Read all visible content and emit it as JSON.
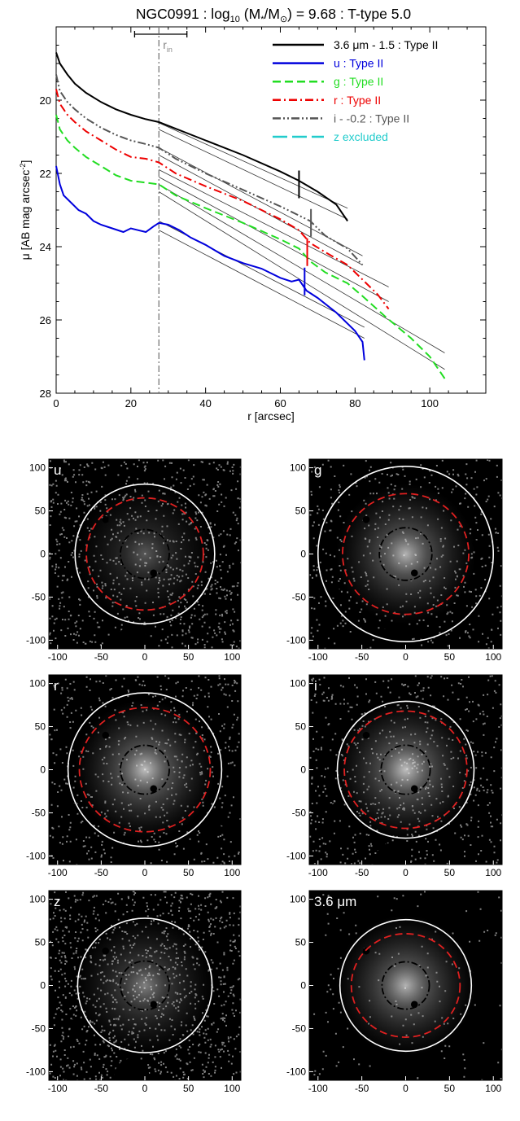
{
  "chart_data": {
    "type": "line",
    "title": "NGC0991 : log",
    "title_sub": "10",
    "title_mid": " (M",
    "title_star": "*",
    "title_rest": "/M",
    "title_sun_sub": "⊙",
    "title_end": ") = 9.68 : T-type 5.0",
    "xlabel": "r [arcsec]",
    "ylabel": "μ [AB mag arcsec",
    "ylabel_sup": "-2",
    "ylabel_end": "]",
    "xlim": [
      0,
      115
    ],
    "ylim": [
      28,
      18
    ],
    "xticks": [
      0,
      20,
      40,
      60,
      80,
      100
    ],
    "yticks": [
      20,
      22,
      24,
      26,
      28
    ],
    "r_in_label": "r",
    "r_in_sub": "in",
    "r_in": 27.5,
    "r_in_range": [
      21,
      35
    ],
    "legend": [
      {
        "label": "3.6 μm - 1.5 : Type II",
        "color": "#000000",
        "dash": "solid"
      },
      {
        "label": "u : Type II",
        "color": "#0000dd",
        "dash": "solid"
      },
      {
        "label": "g : Type II",
        "color": "#22dd22",
        "dash": "dash"
      },
      {
        "label": "r : Type II",
        "color": "#ee0000",
        "dash": "dashdot"
      },
      {
        "label": "i - -0.2 : Type II",
        "color": "#555555",
        "dash": "dashdotdot"
      },
      {
        "label": "z excluded",
        "color": "#22cccc",
        "dash": "longdash"
      }
    ],
    "series": [
      {
        "name": "3.6 μm - 1.5",
        "color": "#000000",
        "x": [
          0,
          1,
          3,
          5,
          8,
          12,
          16,
          20,
          24,
          27.5,
          32,
          40,
          50,
          60,
          65,
          70,
          75,
          78
        ],
        "y": [
          18.7,
          19.0,
          19.3,
          19.55,
          19.8,
          20.05,
          20.25,
          20.4,
          20.52,
          20.6,
          20.78,
          21.1,
          21.5,
          21.95,
          22.2,
          22.5,
          22.85,
          23.3
        ]
      },
      {
        "name": "u",
        "color": "#0000dd",
        "x": [
          0,
          1,
          2,
          4,
          6,
          8,
          10,
          12,
          15,
          18,
          20,
          22,
          24,
          26,
          27.5,
          30,
          33,
          36,
          40,
          45,
          50,
          55,
          60,
          63,
          65,
          67,
          70,
          75,
          80,
          82,
          82.5
        ],
        "y": [
          21.8,
          22.3,
          22.6,
          22.8,
          23.0,
          23.1,
          23.3,
          23.4,
          23.5,
          23.6,
          23.5,
          23.55,
          23.6,
          23.45,
          23.35,
          23.4,
          23.55,
          23.75,
          23.95,
          24.25,
          24.45,
          24.6,
          24.85,
          24.95,
          24.9,
          25.2,
          25.4,
          25.8,
          26.3,
          26.6,
          27.1
        ]
      },
      {
        "name": "g",
        "color": "#22dd22",
        "x": [
          0,
          1,
          3,
          5,
          8,
          12,
          16,
          20,
          24,
          27.5,
          32,
          40,
          50,
          60,
          65,
          68,
          72,
          78,
          82,
          88,
          95,
          100,
          104
        ],
        "y": [
          20.4,
          20.8,
          21.1,
          21.3,
          21.55,
          21.8,
          22.05,
          22.2,
          22.25,
          22.3,
          22.6,
          22.95,
          23.35,
          23.8,
          24.05,
          24.4,
          24.7,
          25.0,
          25.35,
          25.9,
          26.5,
          27.0,
          27.6
        ]
      },
      {
        "name": "r",
        "color": "#ee0000",
        "x": [
          0,
          1,
          3,
          5,
          8,
          12,
          16,
          20,
          24,
          27.5,
          32,
          40,
          50,
          60,
          65,
          68,
          72,
          78,
          82,
          86,
          89
        ],
        "y": [
          19.7,
          20.1,
          20.4,
          20.6,
          20.85,
          21.1,
          21.35,
          21.55,
          21.6,
          21.7,
          22.0,
          22.35,
          22.75,
          23.25,
          23.55,
          23.9,
          24.15,
          24.5,
          24.9,
          25.3,
          25.7
        ]
      },
      {
        "name": "i - -0.2",
        "color": "#555555",
        "x": [
          0,
          1,
          3,
          5,
          8,
          12,
          16,
          20,
          24,
          27.5,
          32,
          40,
          50,
          60,
          65,
          68,
          72,
          78,
          82
        ],
        "y": [
          19.3,
          19.75,
          20.05,
          20.25,
          20.5,
          20.75,
          20.95,
          21.1,
          21.2,
          21.3,
          21.6,
          22.0,
          22.45,
          22.9,
          23.15,
          23.3,
          23.7,
          24.05,
          24.5
        ]
      }
    ],
    "fits": [
      {
        "x": [
          27.5,
          78
        ],
        "y": [
          20.62,
          22.95
        ]
      },
      {
        "x": [
          27.5,
          78
        ],
        "y": [
          20.8,
          23.25
        ]
      },
      {
        "x": [
          27.5,
          82
        ],
        "y": [
          21.3,
          24.25
        ]
      },
      {
        "x": [
          27.5,
          82
        ],
        "y": [
          21.5,
          24.5
        ]
      },
      {
        "x": [
          27.5,
          89
        ],
        "y": [
          21.9,
          25.1
        ]
      },
      {
        "x": [
          27.5,
          89
        ],
        "y": [
          22.1,
          25.5
        ]
      },
      {
        "x": [
          27.5,
          104
        ],
        "y": [
          22.3,
          26.9
        ]
      },
      {
        "x": [
          27.5,
          104
        ],
        "y": [
          22.5,
          27.35
        ]
      },
      {
        "x": [
          27.5,
          82.5
        ],
        "y": [
          23.3,
          26.2
        ]
      },
      {
        "x": [
          27.5,
          82.5
        ],
        "y": [
          23.55,
          26.5
        ]
      }
    ],
    "breaks": [
      {
        "x": 65.0,
        "y": 22.3,
        "color": "#000000"
      },
      {
        "x": 66.5,
        "y": 24.95,
        "color": "#0000dd"
      },
      {
        "x": 67.2,
        "y": 24.15,
        "color": "#ee0000"
      },
      {
        "x": 68.2,
        "y": 23.35,
        "color": "#555555"
      }
    ]
  },
  "image_panels": [
    {
      "label": "u",
      "outer_r": 80,
      "ellipse": [
        67,
        65
      ],
      "inner_r": 28,
      "show_inner": true,
      "noise": 0.6,
      "glow": 0.35
    },
    {
      "label": "g",
      "outer_r": 100,
      "ellipse": [
        72,
        70
      ],
      "inner_r": 30,
      "show_inner": true,
      "noise": 0.35,
      "glow": 0.7
    },
    {
      "label": "r",
      "outer_r": 88,
      "ellipse": [
        75,
        72
      ],
      "inner_r": 28,
      "show_inner": true,
      "noise": 0.4,
      "glow": 0.75
    },
    {
      "label": "i",
      "outer_r": 78,
      "ellipse": [
        70,
        68
      ],
      "inner_r": 28,
      "show_inner": true,
      "noise": 0.45,
      "glow": 0.75
    },
    {
      "label": "z",
      "outer_r": 77,
      "ellipse": [
        0,
        0
      ],
      "inner_r": 28,
      "show_inner": true,
      "noise": 0.75,
      "glow": 0.5
    },
    {
      "label": "3.6 μm",
      "outer_r": 75,
      "ellipse": [
        62,
        60
      ],
      "inner_r": 27,
      "show_inner": true,
      "noise": 0.1,
      "glow": 0.7
    }
  ],
  "panel_ticks": [
    -100,
    -50,
    0,
    50,
    100
  ]
}
